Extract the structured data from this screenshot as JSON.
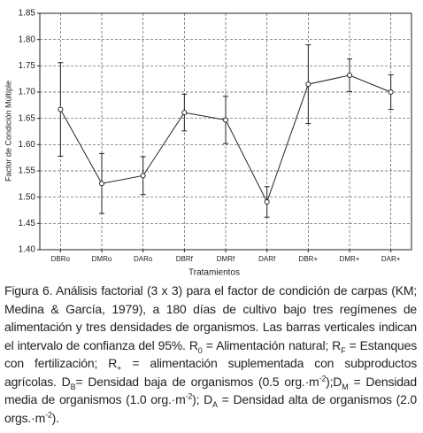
{
  "chart_data": {
    "type": "errorbar",
    "xlabel": "Tratamientos",
    "ylabel": "Factor de Condición Múltiple",
    "categories": [
      "DBRo",
      "DMRo",
      "DARo",
      "DBRf",
      "DMRf",
      "DARf",
      "DBR+",
      "DMR+",
      "DAR+"
    ],
    "values": [
      1.667,
      1.526,
      1.541,
      1.661,
      1.647,
      1.491,
      1.715,
      1.732,
      1.7
    ],
    "errors": [
      0.089,
      0.057,
      0.036,
      0.035,
      0.045,
      0.029,
      0.075,
      0.031,
      0.033
    ],
    "color": "#222222",
    "ylim": [
      1.4,
      1.85
    ],
    "yticks": [
      {
        "value": 1.4,
        "label": "1.40"
      },
      1.45,
      {
        "value": 1.5,
        "label": "1.50"
      },
      1.55,
      {
        "value": 1.6,
        "label": "1.60"
      },
      1.65,
      {
        "value": 1.7,
        "label": "1.70"
      },
      1.75,
      {
        "value": 1.8,
        "label": "1.80"
      },
      1.85
    ],
    "grid": true
  },
  "caption": [
    {
      "text": "Figura 6. Análisis factorial (3 x 3) para el factor de condición de carpas (KM; Medina & García, 1979), a 180 días de cultivo bajo tres regímenes de alimentación y tres densidades de organismos. Las barras verticales indican el intervalo de confianza del 95%. R"
    },
    {
      "text": "0",
      "script": "sub"
    },
    {
      "text": " = Alimentación natural; R"
    },
    {
      "text": "F",
      "script": "sub"
    },
    {
      "text": " = Estanques con fertilización; R"
    },
    {
      "text": "+",
      "script": "sub"
    },
    {
      "text": " = alimentación suplementada con subproductos agrícolas. D"
    },
    {
      "text": "B",
      "script": "sub"
    },
    {
      "text": "= Densidad baja de organismos (0.5 org.·m"
    },
    {
      "text": "-2",
      "script": "sup"
    },
    {
      "text": ");D"
    },
    {
      "text": "M",
      "script": "sub"
    },
    {
      "text": " = Densidad media de organismos (1.0 org.·m"
    },
    {
      "text": "-2",
      "script": "sup"
    },
    {
      "text": "); D"
    },
    {
      "text": "A",
      "script": "sub"
    },
    {
      "text": " = Densidad alta de organismos (2.0 orgs.·m"
    },
    {
      "text": "-2",
      "script": "sup"
    },
    {
      "text": ")."
    }
  ]
}
